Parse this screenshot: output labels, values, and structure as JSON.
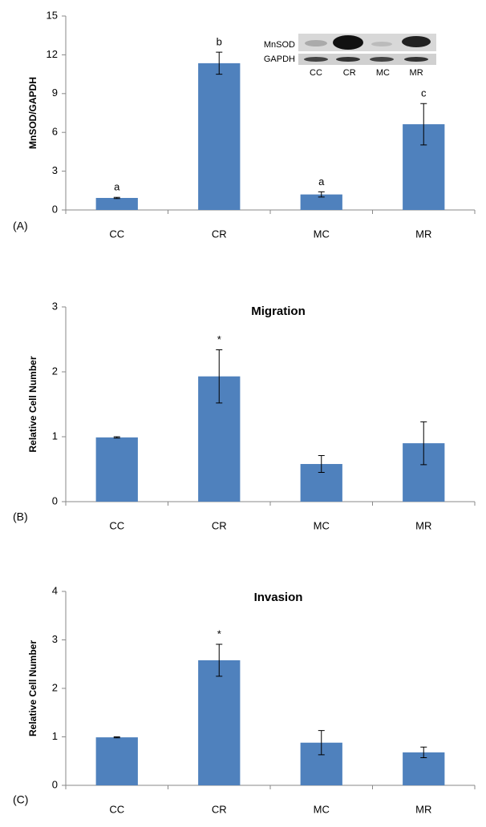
{
  "chart_data": [
    {
      "type": "bar",
      "panel_label": "(A)",
      "y_label": "MnSOD/GAPDH",
      "categories": [
        "CC",
        "CR",
        "MC",
        "MR"
      ],
      "values": [
        0.93,
        11.35,
        1.2,
        6.63
      ],
      "errors": [
        0.05,
        0.85,
        0.2,
        1.6
      ],
      "annotations": [
        "a",
        "b",
        "a",
        "c"
      ],
      "color": "#4f81bd",
      "ylim": [
        0,
        15
      ],
      "yticks": [
        0,
        3,
        6,
        9,
        12,
        15
      ],
      "inset": {
        "row_labels": [
          "MnSOD",
          "GAPDH"
        ],
        "lanes": [
          "CC",
          "CR",
          "MC",
          "MR"
        ]
      }
    },
    {
      "type": "bar",
      "panel_label": "(B)",
      "title": "Migration",
      "y_label": "Relative Cell Number",
      "categories": [
        "CC",
        "CR",
        "MC",
        "MR"
      ],
      "values": [
        0.99,
        1.93,
        0.58,
        0.9
      ],
      "errors": [
        0.01,
        0.41,
        0.13,
        0.33
      ],
      "annotations": [
        null,
        "*",
        null,
        null
      ],
      "color": "#4f81bd",
      "ylim": [
        0,
        3
      ],
      "yticks": [
        0,
        1,
        2,
        3
      ]
    },
    {
      "type": "bar",
      "panel_label": "(C)",
      "title": "Invasion",
      "y_label": "Relative Cell Number",
      "categories": [
        "CC",
        "CR",
        "MC",
        "MR"
      ],
      "values": [
        0.99,
        2.58,
        0.88,
        0.68
      ],
      "errors": [
        0.01,
        0.33,
        0.25,
        0.11
      ],
      "annotations": [
        null,
        "*",
        null,
        null
      ],
      "color": "#4f81bd",
      "ylim": [
        0,
        4
      ],
      "yticks": [
        0,
        1,
        2,
        3,
        4
      ]
    }
  ]
}
